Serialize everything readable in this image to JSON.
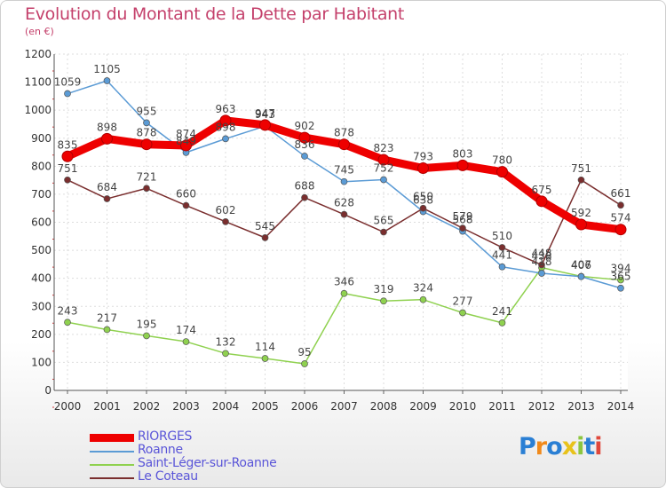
{
  "chart_data": {
    "type": "line",
    "title": "Evolution du Montant de la Dette par Habitant",
    "subtitle": "(en €)",
    "x": [
      "2000",
      "2001",
      "2002",
      "2003",
      "2004",
      "2005",
      "2006",
      "2007",
      "2008",
      "2009",
      "2010",
      "2011",
      "2012",
      "2013",
      "2014"
    ],
    "yticks": [
      "0",
      "100",
      "200",
      "300",
      "400",
      "500",
      "600",
      "700",
      "800",
      "900",
      "1000",
      "1100",
      "1200"
    ],
    "ylim": [
      0,
      1200
    ],
    "grid": true,
    "legend_position": "bottom-left",
    "series": [
      {
        "name": "RIORGES",
        "color": "#ee0000",
        "values": [
          835,
          898,
          878,
          874,
          963,
          947,
          902,
          878,
          823,
          793,
          803,
          780,
          675,
          592,
          574
        ]
      },
      {
        "name": "Roanne",
        "color": "#5b9bd5",
        "values": [
          1059,
          1105,
          955,
          849,
          898,
          943,
          836,
          745,
          752,
          638,
          568,
          441,
          418,
          406,
          365
        ]
      },
      {
        "name": "Saint-Léger-sur-Roanne",
        "color": "#8fd14f",
        "values": [
          243,
          217,
          195,
          174,
          132,
          114,
          95,
          346,
          319,
          324,
          277,
          241,
          438,
          407,
          394
        ]
      },
      {
        "name": "Le Coteau",
        "color": "#7a2e2e",
        "values": [
          751,
          684,
          721,
          660,
          602,
          545,
          688,
          628,
          565,
          650,
          579,
          510,
          448,
          751,
          661
        ]
      }
    ]
  },
  "logo": {
    "letters": [
      "P",
      "r",
      "o",
      "x",
      "i",
      "t",
      "i"
    ],
    "colors": [
      "#2a7fd4",
      "#f08a1c",
      "#2a7fd4",
      "#e8c21a",
      "#8cc63f",
      "#2a7fd4",
      "#e0483c"
    ]
  }
}
